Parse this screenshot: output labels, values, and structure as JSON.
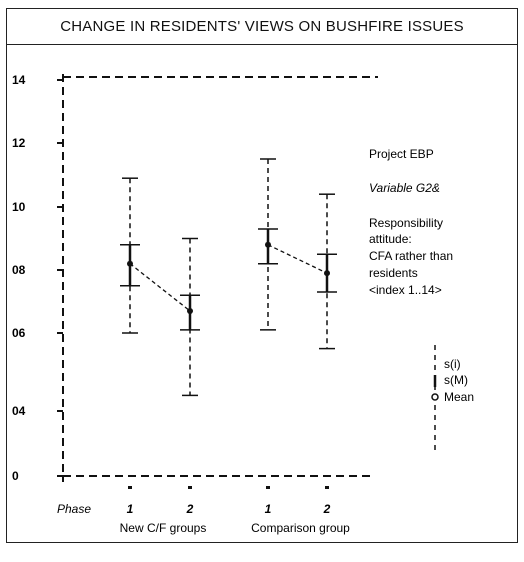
{
  "title": "CHANGE IN RESIDENTS' VIEWS ON BUSHFIRE ISSUES",
  "chart_data": {
    "type": "errorbar",
    "title": "CHANGE IN RESIDENTS' VIEWS ON BUSHFIRE ISSUES",
    "y_ticks": [
      {
        "label": "14",
        "value": 14
      },
      {
        "label": "12",
        "value": 12
      },
      {
        "label": "10",
        "value": 10
      },
      {
        "label": "08",
        "value": 8
      },
      {
        "label": "06",
        "value": 6
      },
      {
        "label": "04",
        "value": 4
      },
      {
        "label": "0",
        "value": 0
      }
    ],
    "x_row_label": "Phase",
    "groups": [
      {
        "name": "New C/F groups",
        "points": [
          {
            "phase": "1",
            "mean": 8.2,
            "sm_low": 7.5,
            "sm_high": 8.8,
            "si_low": 6.0,
            "si_high": 10.9
          },
          {
            "phase": "2",
            "mean": 6.7,
            "sm_low": 6.1,
            "sm_high": 7.2,
            "si_low": 4.4,
            "si_high": 9.0
          }
        ]
      },
      {
        "name": "Comparison group",
        "points": [
          {
            "phase": "1",
            "mean": 8.8,
            "sm_low": 8.2,
            "sm_high": 9.3,
            "si_low": 6.1,
            "si_high": 11.5
          },
          {
            "phase": "2",
            "mean": 7.9,
            "sm_low": 7.3,
            "sm_high": 8.5,
            "si_low": 5.6,
            "si_high": 10.4
          }
        ]
      }
    ],
    "annotation": [
      "Project EBP",
      "Variable G2&",
      "Responsibility",
      "attitude:",
      "CFA rather than",
      "residents",
      "<index 1..14>"
    ],
    "legend": {
      "si": "s(i)",
      "sm": "s(M)",
      "mean": "Mean"
    },
    "grid": false
  }
}
